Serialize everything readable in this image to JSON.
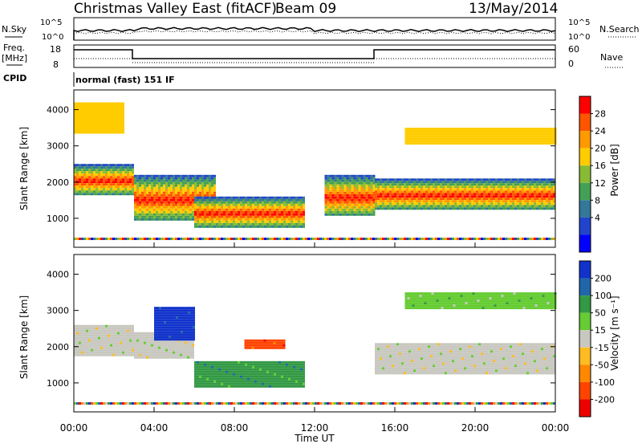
{
  "header": {
    "station": "Christmas Valley East (fitACF)",
    "beam": "Beam 09",
    "date": "13/May/2014"
  },
  "noise_panel": {
    "left_label": "N.Sky",
    "left_ticks": [
      "10^5",
      "10^0"
    ],
    "right_ticks": [
      "10^5",
      "10^0"
    ],
    "right_label": "N.Search"
  },
  "freq_panel": {
    "left_label_1": "Freq.",
    "left_label_2": "[MHz]",
    "left_ticks": [
      "18",
      "8"
    ],
    "right_ticks": [
      "60",
      "0"
    ],
    "right_label": "Nave",
    "cpid_label": "CPID",
    "mode": "normal (fast) 151 IF"
  },
  "chart_data": [
    {
      "type": "heatmap",
      "name": "power",
      "ylabel": "Slant Range [km]",
      "yticks": [
        1000,
        2000,
        3000,
        4000
      ],
      "ylim": [
        200,
        4500
      ],
      "colorbar": {
        "label": "Power [dB]",
        "ticks": [
          28,
          24,
          20,
          16,
          12,
          8,
          4
        ],
        "colors": [
          "#ff0000",
          "#ff5500",
          "#ff9900",
          "#ffcc00",
          "#88bb33",
          "#44a055",
          "#337799",
          "#2244cc",
          "#0000ff"
        ]
      },
      "bands": [
        {
          "start": "00:00",
          "end": "03:00",
          "range_low": 1700,
          "range_high": 2500,
          "level": "high"
        },
        {
          "start": "00:00",
          "end": "02:30",
          "range_low": 3400,
          "range_high": 4200,
          "level": "low"
        },
        {
          "start": "03:00",
          "end": "07:00",
          "range_low": 1000,
          "range_high": 2200,
          "level": "high"
        },
        {
          "start": "06:00",
          "end": "11:30",
          "range_low": 800,
          "range_high": 1600,
          "level": "high"
        },
        {
          "start": "12:30",
          "end": "15:00",
          "range_low": 1100,
          "range_high": 2200,
          "level": "high"
        },
        {
          "start": "15:00",
          "end": "24:00",
          "range_low": 1300,
          "range_high": 2100,
          "level": "high"
        },
        {
          "start": "16:30",
          "end": "24:00",
          "range_low": 3100,
          "range_high": 3500,
          "level": "low"
        }
      ]
    },
    {
      "type": "heatmap",
      "name": "velocity",
      "ylabel": "Slant Range [km]",
      "yticks": [
        1000,
        2000,
        3000,
        4000
      ],
      "ylim": [
        200,
        4500
      ],
      "xlabel": "Time UT",
      "xticks": [
        "00:00",
        "04:00",
        "08:00",
        "12:00",
        "16:00",
        "20:00",
        "00:00"
      ],
      "colorbar": {
        "label": "Velocity [m s⁻¹]",
        "ticks": [
          200,
          100,
          50,
          15,
          -15,
          -50,
          -100,
          -200
        ],
        "colors": [
          "#1133cc",
          "#2266aa",
          "#339944",
          "#66cc33",
          "#c8c8c0",
          "#ffbb22",
          "#ff8800",
          "#ff4400",
          "#ee0000"
        ]
      },
      "bands": [
        {
          "start": "00:00",
          "end": "03:00",
          "range_low": 1800,
          "range_high": 2600,
          "velocity": 0
        },
        {
          "start": "03:00",
          "end": "06:00",
          "range_low": 1700,
          "range_high": 2400,
          "velocity": 0
        },
        {
          "start": "04:00",
          "end": "06:00",
          "range_low": 2200,
          "range_high": 3100,
          "velocity": 200
        },
        {
          "start": "06:00",
          "end": "11:30",
          "range_low": 900,
          "range_high": 1600,
          "velocity": 50
        },
        {
          "start": "08:30",
          "end": "10:30",
          "range_low": 2000,
          "range_high": 2200,
          "velocity": -200
        },
        {
          "start": "15:00",
          "end": "24:00",
          "range_low": 1300,
          "range_high": 2100,
          "velocity": 0
        },
        {
          "start": "16:30",
          "end": "24:00",
          "range_low": 3100,
          "range_high": 3500,
          "velocity": 15
        }
      ]
    }
  ]
}
